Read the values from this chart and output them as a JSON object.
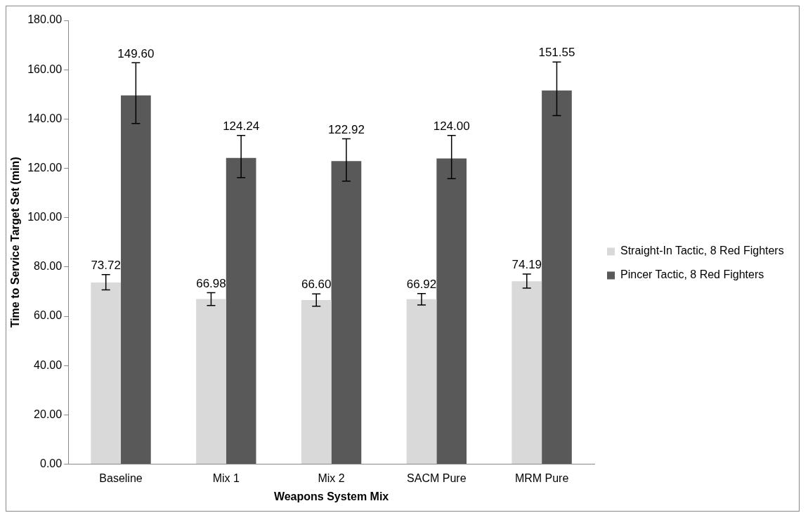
{
  "chart_data": {
    "type": "bar",
    "xlabel": "Weapons System Mix",
    "ylabel": "Time to Service Target Set (min)",
    "categories": [
      "Baseline",
      "Mix 1",
      "Mix 2",
      "SACM Pure",
      "MRM Pure"
    ],
    "series": [
      {
        "name": "Straight-In Tactic, 8 Red Fighters",
        "color": "#d9d9d9",
        "values": [
          73.72,
          66.98,
          66.6,
          66.92,
          74.19
        ],
        "value_labels": [
          "73.72",
          "66.98",
          "66.60",
          "66.92",
          "74.19"
        ],
        "errors": [
          [
            70.7,
            76.9
          ],
          [
            64.4,
            69.6
          ],
          [
            64.1,
            69.1
          ],
          [
            64.6,
            69.2
          ],
          [
            71.4,
            77.1
          ]
        ]
      },
      {
        "name": "Pincer Tactic, 8 Red Fighters",
        "color": "#595959",
        "values": [
          149.6,
          124.24,
          122.92,
          124.0,
          151.55
        ],
        "value_labels": [
          "149.60",
          "124.24",
          "122.92",
          "124.00",
          "151.55"
        ],
        "errors": [
          [
            138.2,
            162.8
          ],
          [
            116.2,
            133.3
          ],
          [
            114.8,
            132.0
          ],
          [
            115.8,
            133.3
          ],
          [
            141.4,
            163.1
          ]
        ]
      }
    ],
    "ylim": [
      0,
      180
    ],
    "yticks": [
      {
        "value": 0,
        "label": "0.00"
      },
      {
        "value": 20,
        "label": "20.00"
      },
      {
        "value": 40,
        "label": "40.00"
      },
      {
        "value": 60,
        "label": "60.00"
      },
      {
        "value": 80,
        "label": "80.00"
      },
      {
        "value": 100,
        "label": "100.00"
      },
      {
        "value": 120,
        "label": "120.00"
      },
      {
        "value": 140,
        "label": "140.00"
      },
      {
        "value": 160,
        "label": "160.00"
      },
      {
        "value": 180,
        "label": "180.00"
      }
    ],
    "grid": false,
    "legend": "right"
  }
}
